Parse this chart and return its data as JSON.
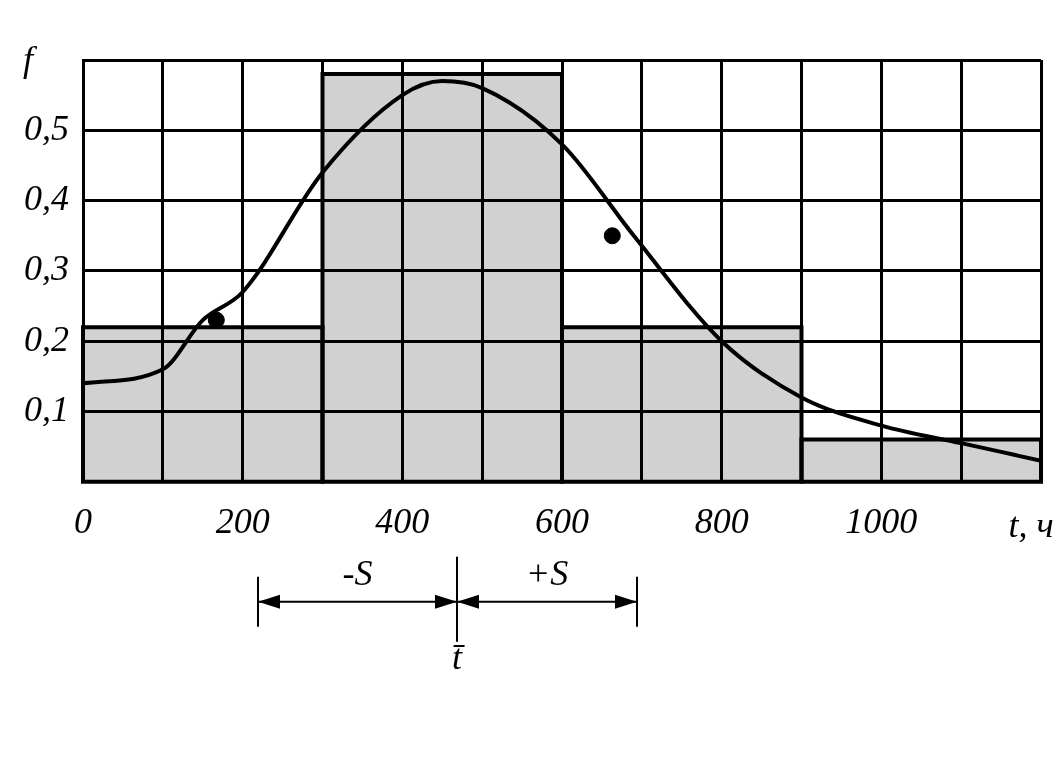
{
  "chart_data": {
    "type": "histogram",
    "xlabel": "t, ч",
    "ylabel": "f",
    "bins": [
      0,
      300,
      600,
      900,
      1200
    ],
    "values": [
      0.22,
      0.58,
      0.22,
      0.06
    ],
    "color": "#000000",
    "series": [
      {
        "type": "line",
        "color": "#000000",
        "marker": "none",
        "x": [
          0,
          100,
          150,
          200,
          300,
          400,
          450,
          500,
          600,
          690,
          800,
          900,
          1000,
          1100,
          1200
        ],
        "values": [
          0.14,
          0.16,
          0.23,
          0.27,
          0.44,
          0.55,
          0.57,
          0.56,
          0.48,
          0.35,
          0.2,
          0.12,
          0.08,
          0.055,
          0.03
        ]
      },
      {
        "type": "scatter",
        "color": "#000000",
        "marker": "circle",
        "x": [
          167,
          663
        ],
        "values": [
          0.23,
          0.35
        ]
      }
    ],
    "xlim": [
      0,
      1200
    ],
    "ylim": [
      0,
      0.6
    ],
    "xticks": [
      0,
      {
        "value": 100,
        "label": null
      },
      200,
      {
        "value": 300,
        "label": null
      },
      400,
      {
        "value": 500,
        "label": null
      },
      600,
      {
        "value": 700,
        "label": null
      },
      800,
      {
        "value": 900,
        "label": null
      },
      1000,
      {
        "value": 1100,
        "label": null
      },
      {
        "value": 1200,
        "label": null
      }
    ],
    "yticks": [
      {
        "value": 0.1,
        "label": "0,1"
      },
      {
        "value": 0.2,
        "label": "0,2"
      },
      {
        "value": 0.3,
        "label": "0,3"
      },
      {
        "value": 0.4,
        "label": "0,4"
      },
      {
        "value": 0.5,
        "label": "0,5"
      },
      {
        "value": 0.6,
        "label": null
      }
    ],
    "grid": true,
    "legend": false,
    "annotations": [
      "t̄",
      "-S",
      "+S"
    ]
  }
}
